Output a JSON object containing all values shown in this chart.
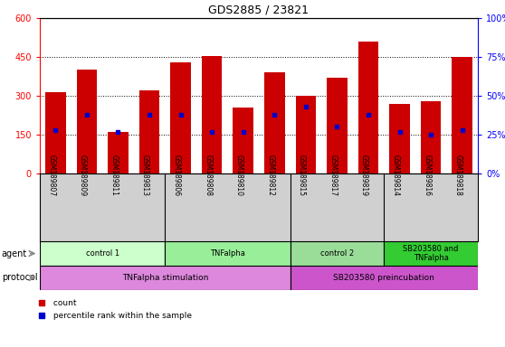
{
  "title": "GDS2885 / 23821",
  "samples": [
    "GSM189807",
    "GSM189809",
    "GSM189811",
    "GSM189813",
    "GSM189806",
    "GSM189808",
    "GSM189810",
    "GSM189812",
    "GSM189815",
    "GSM189817",
    "GSM189819",
    "GSM189814",
    "GSM189816",
    "GSM189818"
  ],
  "counts": [
    315,
    400,
    160,
    320,
    430,
    455,
    255,
    390,
    300,
    370,
    510,
    270,
    280,
    450
  ],
  "percentile_ranks": [
    28,
    38,
    27,
    38,
    38,
    27,
    27,
    38,
    43,
    30,
    38,
    27,
    25,
    28
  ],
  "ylim_left": [
    0,
    600
  ],
  "ylim_right": [
    0,
    100
  ],
  "yticks_left": [
    0,
    150,
    300,
    450,
    600
  ],
  "ytick_labels_left": [
    "0",
    "150",
    "300",
    "450",
    "600"
  ],
  "yticks_right": [
    0,
    25,
    50,
    75,
    100
  ],
  "ytick_labels_right": [
    "0%",
    "25%",
    "50%",
    "75%",
    "100%"
  ],
  "bar_color": "#cc0000",
  "dot_color": "#0000cc",
  "bar_width": 0.65,
  "agent_groups": [
    {
      "label": "control 1",
      "start": 0,
      "end": 3,
      "color": "#ccffcc"
    },
    {
      "label": "TNFalpha",
      "start": 4,
      "end": 7,
      "color": "#99ee99"
    },
    {
      "label": "control 2",
      "start": 8,
      "end": 10,
      "color": "#99dd99"
    },
    {
      "label": "SB203580 and\nTNFalpha",
      "start": 11,
      "end": 13,
      "color": "#33cc33"
    }
  ],
  "protocol_groups": [
    {
      "label": "TNFalpha stimulation",
      "start": 0,
      "end": 7,
      "color": "#dd88dd"
    },
    {
      "label": "SB203580 preincubation",
      "start": 8,
      "end": 13,
      "color": "#cc55cc"
    }
  ],
  "legend_items": [
    {
      "color": "#cc0000",
      "label": " count"
    },
    {
      "color": "#0000cc",
      "label": " percentile rank within the sample"
    }
  ],
  "grid_yticks": [
    150,
    300,
    450
  ],
  "agent_row_label": "agent",
  "protocol_row_label": "protocol",
  "xlabels_bg": "#d0d0d0",
  "border_color": "#000000",
  "title_fontsize": 9,
  "tick_fontsize": 7,
  "label_fontsize": 7,
  "row_label_fontsize": 7
}
